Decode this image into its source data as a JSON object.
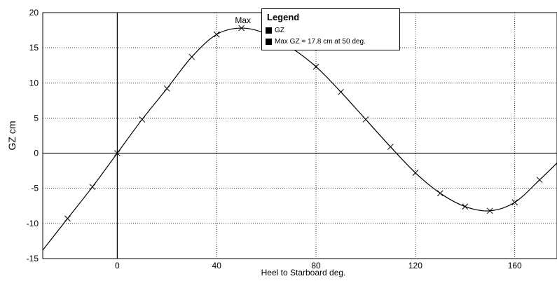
{
  "chart_data": {
    "type": "line",
    "xlabel": "Heel to Starboard   deg.",
    "ylabel": "GZ  cm",
    "xlim": [
      -30,
      177
    ],
    "ylim": [
      -15,
      20
    ],
    "x_ticks": [
      0,
      40,
      80,
      120,
      160
    ],
    "y_ticks": [
      -15,
      -10,
      -5,
      0,
      5,
      10,
      15,
      20
    ],
    "x_tick_labels": [
      "0",
      "40",
      "80",
      "120",
      "160"
    ],
    "y_tick_labels": [
      "-15",
      "-10",
      "-5",
      "0",
      "5",
      "10",
      "15",
      "20"
    ],
    "grid": true,
    "legend_position": "top-center",
    "series": [
      {
        "name": "GZ",
        "color": "#000000",
        "x": [
          -30,
          -20,
          -10,
          0,
          10,
          20,
          30,
          40,
          50,
          60,
          70,
          80,
          90,
          100,
          110,
          120,
          130,
          140,
          150,
          160,
          170,
          177
        ],
        "y": [
          -13.8,
          -9.3,
          -4.8,
          0.0,
          4.8,
          9.2,
          13.7,
          16.9,
          17.8,
          17.0,
          15.0,
          12.3,
          8.7,
          4.8,
          0.9,
          -2.8,
          -5.7,
          -7.6,
          -8.2,
          -7.0,
          -3.8,
          -1.4
        ],
        "markers_x": [
          -20,
          -10,
          0,
          10,
          20,
          30,
          40,
          50,
          80,
          90,
          100,
          110,
          120,
          130,
          140,
          150,
          160,
          170
        ],
        "marker": "x"
      }
    ],
    "annotations": [
      {
        "text": "Max",
        "x": 50,
        "y": 17.8
      }
    ],
    "legend": {
      "title": "Legend",
      "items": [
        {
          "label": "GZ",
          "color": "#000000"
        },
        {
          "label": "Max GZ = 17.8 cm at 50 deg.",
          "color": "#000000"
        }
      ]
    }
  }
}
